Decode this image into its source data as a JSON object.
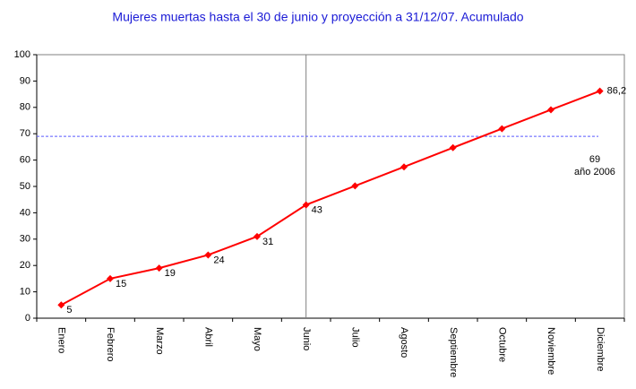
{
  "chart_data": {
    "type": "line",
    "title": "Mujeres muertas hasta el 30 de junio y proyección a 31/12/07. Acumulado",
    "categories": [
      "Enero",
      "Febrero",
      "Marzo",
      "Abril",
      "Mayo",
      "Junio",
      "Julio",
      "Agosto",
      "Septiembre",
      "Octubre",
      "Noviembre",
      "Diciembre"
    ],
    "values": [
      5,
      15,
      19,
      24,
      31,
      43,
      50.2,
      57.4,
      64.7,
      71.9,
      79.1,
      86.2
    ],
    "value_labels": [
      "5",
      "15",
      "19",
      "24",
      "31",
      "43",
      null,
      null,
      null,
      null,
      null,
      "86,2"
    ],
    "color": "#ff0000",
    "ylim": [
      0,
      100
    ],
    "yticks": [
      0,
      10,
      20,
      30,
      40,
      50,
      60,
      70,
      80,
      90,
      100
    ],
    "reference_line": {
      "value": 69,
      "label": "69",
      "note": "año 2006",
      "color": "#5a5aff"
    }
  }
}
